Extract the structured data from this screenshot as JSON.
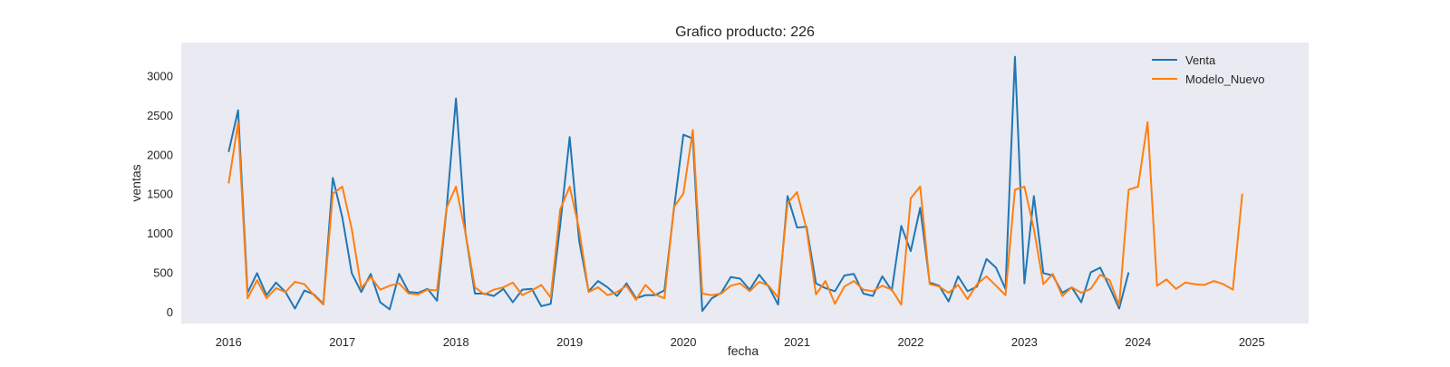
{
  "chart_data": {
    "type": "line",
    "title": "Grafico producto: 226",
    "xlabel": "fecha",
    "ylabel": "ventas",
    "x_start": "2016-01",
    "x_ticks": [
      "2016",
      "2017",
      "2018",
      "2019",
      "2020",
      "2021",
      "2022",
      "2023",
      "2024",
      "2025"
    ],
    "y_ticks": [
      0,
      500,
      1000,
      1500,
      2000,
      2500,
      3000
    ],
    "xlim": [
      "2015-08",
      "2025-07"
    ],
    "ylim": [
      -150,
      3420
    ],
    "grid": false,
    "background": "#eaeaf2",
    "legend_position": "top-right",
    "series": [
      {
        "name": "Venta",
        "color": "#1f77b4",
        "values": [
          2030,
          2560,
          240,
          490,
          210,
          370,
          250,
          40,
          270,
          220,
          100,
          1700,
          1200,
          490,
          250,
          480,
          120,
          30,
          480,
          250,
          240,
          290,
          140,
          1300,
          2710,
          1000,
          230,
          230,
          200,
          290,
          120,
          280,
          290,
          70,
          100,
          1100,
          2220,
          900,
          260,
          390,
          310,
          200,
          360,
          170,
          210,
          210,
          270,
          1300,
          2250,
          2200,
          10,
          170,
          240,
          440,
          420,
          280,
          470,
          320,
          90,
          1470,
          1070,
          1080,
          360,
          300,
          260,
          460,
          480,
          230,
          200,
          450,
          270,
          1090,
          770,
          1320,
          370,
          330,
          130,
          450,
          260,
          320,
          670,
          560,
          290,
          3240,
          360,
          1470,
          490,
          460,
          240,
          310,
          120,
          500,
          560,
          310,
          40,
          500
        ],
        "values_note": "first value at 2016-01, monthly"
      },
      {
        "name": "Modelo_Nuevo",
        "color": "#ff7f0e",
        "values": [
          1630,
          2400,
          170,
          400,
          170,
          300,
          250,
          380,
          350,
          210,
          90,
          1500,
          1590,
          1050,
          300,
          440,
          280,
          330,
          360,
          230,
          220,
          280,
          270,
          1320,
          1590,
          1000,
          310,
          220,
          280,
          310,
          370,
          210,
          270,
          340,
          180,
          1300,
          1590,
          1050,
          250,
          310,
          210,
          250,
          330,
          150,
          340,
          220,
          170,
          1330,
          1500,
          2310,
          230,
          210,
          230,
          330,
          360,
          260,
          380,
          330,
          180,
          1380,
          1520,
          1050,
          220,
          390,
          100,
          320,
          390,
          280,
          260,
          330,
          280,
          90,
          1440,
          1590,
          350,
          320,
          240,
          340,
          160,
          350,
          450,
          330,
          210,
          1550,
          1590,
          1050,
          350,
          480,
          200,
          310,
          240,
          290,
          470,
          400,
          80,
          1550,
          1590,
          2410,
          330,
          410,
          290,
          370,
          350,
          340,
          390,
          350,
          280,
          1500
        ],
        "values_note": "first value at 2016-01, monthly"
      }
    ]
  }
}
